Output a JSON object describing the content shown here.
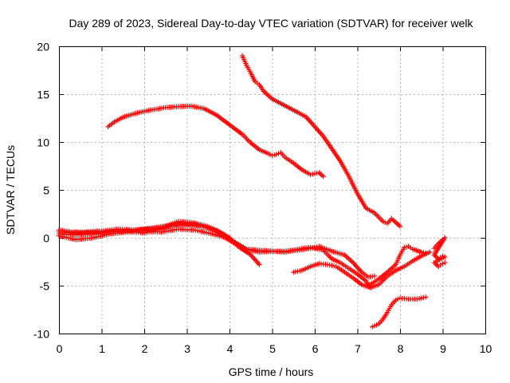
{
  "chart_data": {
    "type": "scatter",
    "title": "Day 289 of 2023, Sidereal Day-to-day VTEC variation (SDTVAR) for receiver welk",
    "xlabel": "GPS time / hours",
    "ylabel": "SDTVAR / TECUs",
    "xlim": [
      0,
      10
    ],
    "ylim": [
      -10,
      20
    ],
    "xticks": [
      0,
      1,
      2,
      3,
      4,
      5,
      6,
      7,
      8,
      9,
      10
    ],
    "yticks": [
      -10,
      -5,
      0,
      5,
      10,
      15,
      20
    ],
    "grid": true,
    "marker": "plus",
    "color": "#ff0000",
    "series": [
      {
        "name": "track-upper-arc",
        "points": [
          [
            1.15,
            11.6
          ],
          [
            1.3,
            12.1
          ],
          [
            1.5,
            12.6
          ],
          [
            1.8,
            13.0
          ],
          [
            2.1,
            13.3
          ],
          [
            2.5,
            13.6
          ],
          [
            2.8,
            13.7
          ],
          [
            3.1,
            13.75
          ],
          [
            3.4,
            13.5
          ],
          [
            3.7,
            12.8
          ],
          [
            4.0,
            11.8
          ],
          [
            4.3,
            10.8
          ],
          [
            4.5,
            9.9
          ],
          [
            4.7,
            9.2
          ],
          [
            4.9,
            8.8
          ],
          [
            5.0,
            8.6
          ],
          [
            5.1,
            8.7
          ],
          [
            5.2,
            8.9
          ],
          [
            5.3,
            8.4
          ],
          [
            5.5,
            7.8
          ],
          [
            5.7,
            7.1
          ],
          [
            5.9,
            6.6
          ],
          [
            6.1,
            6.8
          ],
          [
            6.2,
            6.4
          ]
        ]
      },
      {
        "name": "track-descending",
        "points": [
          [
            4.3,
            19.0
          ],
          [
            4.4,
            18.0
          ],
          [
            4.5,
            17.2
          ],
          [
            4.6,
            16.3
          ],
          [
            4.7,
            16.0
          ],
          [
            4.8,
            15.3
          ],
          [
            5.0,
            14.5
          ],
          [
            5.3,
            13.8
          ],
          [
            5.6,
            13.1
          ],
          [
            5.8,
            12.6
          ],
          [
            6.0,
            11.6
          ],
          [
            6.2,
            10.6
          ],
          [
            6.4,
            9.3
          ],
          [
            6.6,
            8.0
          ],
          [
            6.8,
            6.4
          ],
          [
            7.0,
            4.6
          ],
          [
            7.2,
            3.1
          ],
          [
            7.4,
            2.6
          ],
          [
            7.6,
            1.7
          ],
          [
            7.7,
            1.5
          ],
          [
            7.8,
            2.0
          ],
          [
            7.9,
            1.6
          ],
          [
            8.0,
            1.2
          ]
        ]
      },
      {
        "name": "track-zero-a",
        "points": [
          [
            0.0,
            0.8
          ],
          [
            0.3,
            0.6
          ],
          [
            0.6,
            0.6
          ],
          [
            1.0,
            0.7
          ],
          [
            1.4,
            0.9
          ],
          [
            1.8,
            0.8
          ],
          [
            2.2,
            1.0
          ],
          [
            2.6,
            1.3
          ],
          [
            3.0,
            1.4
          ],
          [
            3.4,
            1.2
          ],
          [
            3.8,
            0.5
          ],
          [
            4.1,
            -0.4
          ],
          [
            4.4,
            -1.2
          ],
          [
            4.7,
            -1.5
          ],
          [
            5.0,
            -1.4
          ],
          [
            5.3,
            -1.4
          ],
          [
            5.6,
            -1.3
          ],
          [
            5.9,
            -1.1
          ],
          [
            6.1,
            -0.9
          ],
          [
            6.4,
            -1.4
          ],
          [
            6.7,
            -1.8
          ],
          [
            6.9,
            -2.6
          ],
          [
            7.1,
            -3.6
          ],
          [
            7.25,
            -4.1
          ],
          [
            7.4,
            -4.0
          ]
        ]
      },
      {
        "name": "track-zero-b",
        "points": [
          [
            0.0,
            0.4
          ],
          [
            0.4,
            0.3
          ],
          [
            0.8,
            0.4
          ],
          [
            1.2,
            0.6
          ],
          [
            1.6,
            0.7
          ],
          [
            2.0,
            0.5
          ],
          [
            2.4,
            0.9
          ],
          [
            2.8,
            1.5
          ],
          [
            3.2,
            1.4
          ],
          [
            3.6,
            0.9
          ],
          [
            3.9,
            0.2
          ],
          [
            4.1,
            -0.4
          ],
          [
            4.4,
            -1.2
          ],
          [
            4.7,
            -1.3
          ],
          [
            5.0,
            -1.4
          ],
          [
            5.3,
            -1.5
          ],
          [
            5.6,
            -1.2
          ],
          [
            5.9,
            -1.0
          ],
          [
            6.2,
            -1.3
          ],
          [
            6.4,
            -2.2
          ],
          [
            6.6,
            -2.6
          ],
          [
            6.8,
            -3.2
          ],
          [
            7.0,
            -3.8
          ],
          [
            7.2,
            -4.5
          ],
          [
            7.3,
            -5.2
          ]
        ]
      },
      {
        "name": "track-zero-c",
        "points": [
          [
            0.0,
            0.2
          ],
          [
            0.4,
            -0.2
          ],
          [
            0.8,
            0.0
          ],
          [
            1.2,
            0.4
          ],
          [
            1.6,
            0.6
          ],
          [
            2.0,
            0.7
          ],
          [
            2.4,
            0.6
          ],
          [
            2.8,
            0.9
          ],
          [
            3.2,
            0.8
          ],
          [
            3.6,
            0.4
          ],
          [
            3.9,
            0.0
          ],
          [
            4.2,
            -0.8
          ],
          [
            4.5,
            -1.8
          ],
          [
            4.7,
            -2.8
          ]
        ]
      },
      {
        "name": "track-zero-d",
        "points": [
          [
            0.0,
            0.6
          ],
          [
            0.5,
            0.5
          ],
          [
            1.0,
            0.6
          ],
          [
            1.5,
            0.7
          ],
          [
            2.0,
            0.9
          ],
          [
            2.5,
            1.2
          ],
          [
            2.8,
            1.7
          ],
          [
            3.1,
            1.6
          ],
          [
            3.4,
            1.3
          ],
          [
            3.7,
            0.8
          ],
          [
            4.0,
            0.0
          ],
          [
            4.2,
            -0.9
          ],
          [
            4.4,
            -1.5
          ]
        ]
      },
      {
        "name": "track-dip",
        "points": [
          [
            5.5,
            -3.6
          ],
          [
            5.7,
            -3.4
          ],
          [
            5.9,
            -3.0
          ],
          [
            6.1,
            -2.7
          ],
          [
            6.3,
            -2.8
          ],
          [
            6.5,
            -3.0
          ],
          [
            6.7,
            -3.6
          ],
          [
            6.9,
            -4.2
          ],
          [
            7.1,
            -4.9
          ],
          [
            7.3,
            -5.2
          ],
          [
            7.5,
            -4.9
          ],
          [
            7.7,
            -4.0
          ],
          [
            7.9,
            -3.4
          ],
          [
            8.1,
            -3.0
          ],
          [
            8.3,
            -2.4
          ],
          [
            8.5,
            -1.9
          ],
          [
            8.7,
            -1.5
          ]
        ]
      },
      {
        "name": "track-rise",
        "points": [
          [
            7.3,
            -4.9
          ],
          [
            7.5,
            -4.3
          ],
          [
            7.7,
            -3.6
          ],
          [
            7.9,
            -2.8
          ],
          [
            8.0,
            -1.8
          ],
          [
            8.1,
            -1.0
          ],
          [
            8.2,
            -0.9
          ],
          [
            8.3,
            -1.2
          ],
          [
            8.5,
            -1.5
          ],
          [
            8.6,
            -1.6
          ]
        ]
      },
      {
        "name": "track-low",
        "points": [
          [
            7.35,
            -9.3
          ],
          [
            7.5,
            -9.0
          ],
          [
            7.6,
            -8.5
          ],
          [
            7.7,
            -7.8
          ],
          [
            7.8,
            -7.0
          ],
          [
            7.9,
            -6.5
          ],
          [
            8.0,
            -6.3
          ],
          [
            8.2,
            -6.4
          ],
          [
            8.4,
            -6.4
          ],
          [
            8.6,
            -6.2
          ]
        ]
      },
      {
        "name": "track-end-cluster",
        "points": [
          [
            8.8,
            -1.1
          ],
          [
            8.9,
            -0.6
          ],
          [
            9.0,
            -0.2
          ],
          [
            9.05,
            0.0
          ],
          [
            8.8,
            -1.8
          ],
          [
            8.9,
            -2.2
          ],
          [
            9.0,
            -1.9
          ],
          [
            9.05,
            -2.0
          ],
          [
            8.8,
            -2.6
          ],
          [
            8.9,
            -3.0
          ],
          [
            9.0,
            -2.7
          ],
          [
            9.05,
            -2.6
          ]
        ]
      }
    ]
  }
}
